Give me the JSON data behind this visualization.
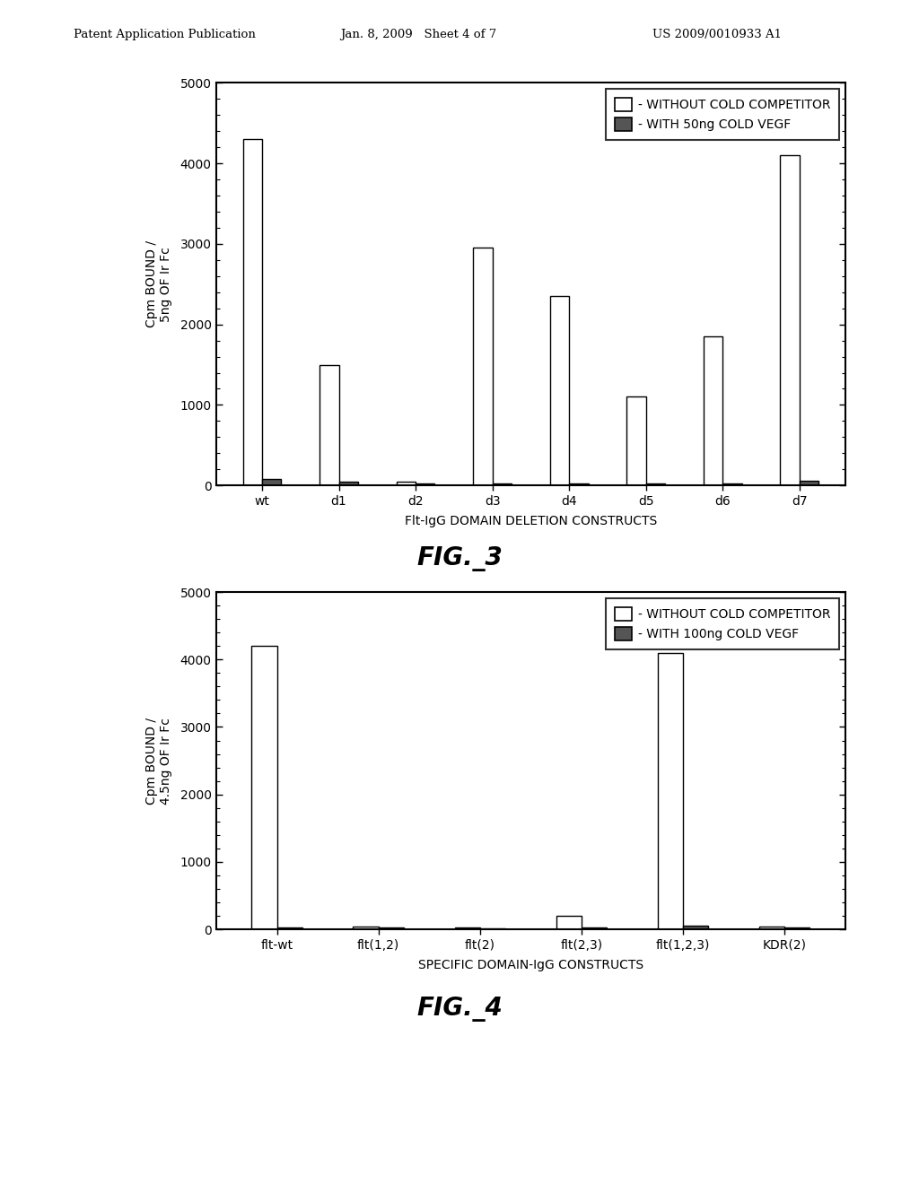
{
  "fig3": {
    "categories": [
      "wt",
      "d1",
      "d2",
      "d3",
      "d4",
      "d5",
      "d6",
      "d7"
    ],
    "without_cold": [
      4300,
      1500,
      50,
      2950,
      2350,
      1100,
      1850,
      4100
    ],
    "with_cold": [
      80,
      50,
      30,
      30,
      30,
      30,
      30,
      60
    ],
    "ylabel": "Cpm BOUND /\n5ng OF Ir Fc",
    "xlabel": "Flt-IgG DOMAIN DELETION CONSTRUCTS",
    "legend1": "- WITHOUT COLD COMPETITOR",
    "legend2": "- WITH 50ng COLD VEGF",
    "figname": "FIG._3",
    "ylim": [
      0,
      5000
    ],
    "yticks": [
      0,
      1000,
      2000,
      3000,
      4000,
      5000
    ]
  },
  "fig4": {
    "categories": [
      "flt-wt",
      "flt(1,2)",
      "flt(2)",
      "flt(2,3)",
      "flt(1,2,3)",
      "KDR(2)"
    ],
    "without_cold": [
      4200,
      40,
      25,
      200,
      4100,
      40
    ],
    "with_cold": [
      30,
      25,
      20,
      30,
      50,
      25
    ],
    "ylabel": "Cpm BOUND /\n4.5ng OF Ir Fc",
    "xlabel": "SPECIFIC DOMAIN-IgG CONSTRUCTS",
    "legend1": "- WITHOUT COLD COMPETITOR",
    "legend2": "- WITH 100ng COLD VEGF",
    "figname": "FIG._4",
    "ylim": [
      0,
      5000
    ],
    "yticks": [
      0,
      1000,
      2000,
      3000,
      4000,
      5000
    ]
  },
  "header_left": "Patent Application Publication",
  "header_center": "Jan. 8, 2009   Sheet 4 of 7",
  "header_right": "US 2009/0010933 A1",
  "bar_width": 0.25,
  "color_without": "#ffffff",
  "color_with": "#555555",
  "edge_color": "#000000",
  "background": "#ffffff"
}
